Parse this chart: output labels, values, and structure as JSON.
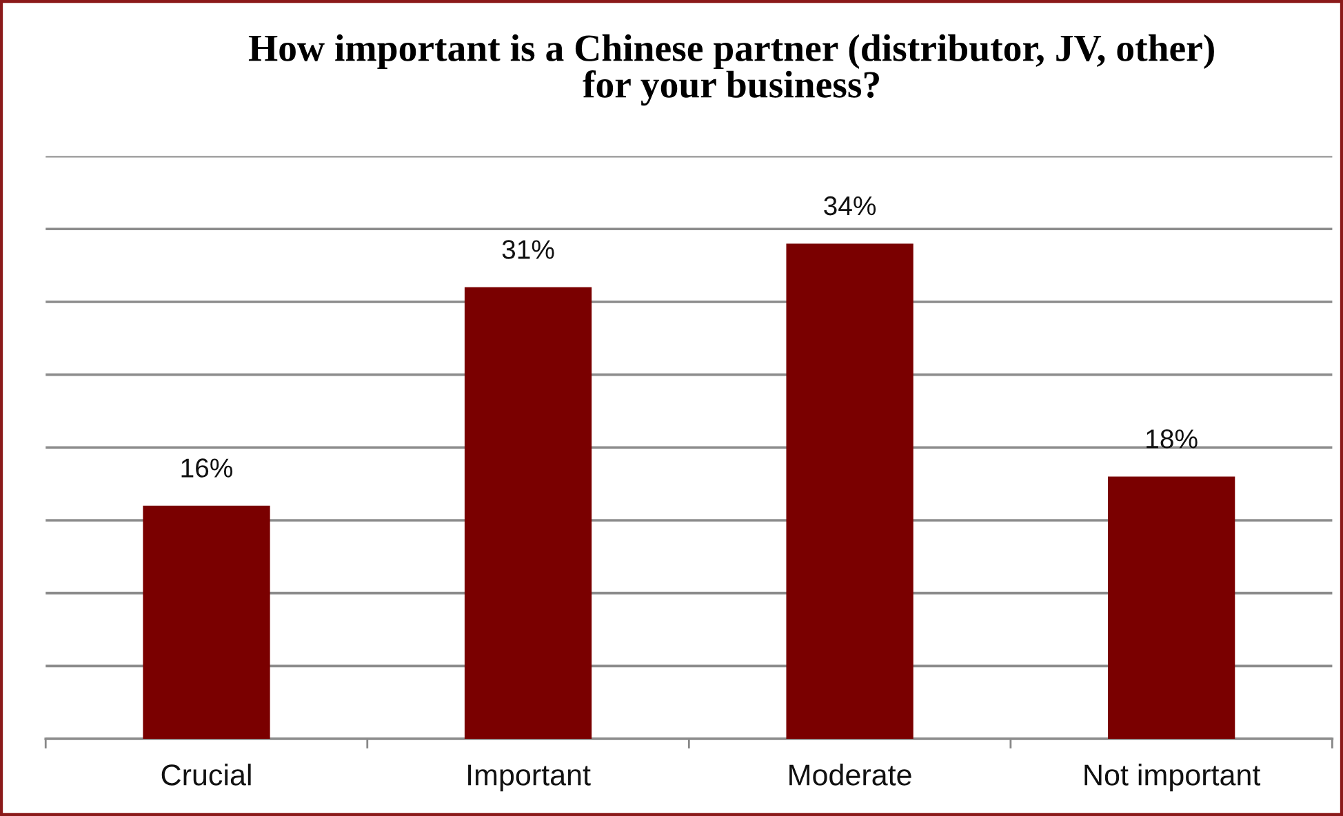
{
  "chart_data": {
    "type": "bar",
    "title": "How important is a Chinese partner (distributor, JV, other)\nfor your business?",
    "categories": [
      "Crucial",
      "Important",
      "Moderate",
      "Not important"
    ],
    "values": [
      16,
      31,
      34,
      18
    ],
    "color": "#7a0000",
    "value_labels": [
      "16%",
      "31%",
      "34%",
      "18%"
    ],
    "ylim": [
      0,
      40
    ],
    "yticks": [
      {
        "value": 0,
        "label": null
      },
      {
        "value": 5,
        "label": null
      },
      {
        "value": 10,
        "label": null
      },
      {
        "value": 15,
        "label": null
      },
      {
        "value": 20,
        "label": null
      },
      {
        "value": 25,
        "label": null
      },
      {
        "value": 30,
        "label": null
      },
      {
        "value": 35,
        "label": null
      },
      {
        "value": 40,
        "label": null
      }
    ],
    "grid": "y",
    "tick_labels": "x",
    "legend": false
  }
}
